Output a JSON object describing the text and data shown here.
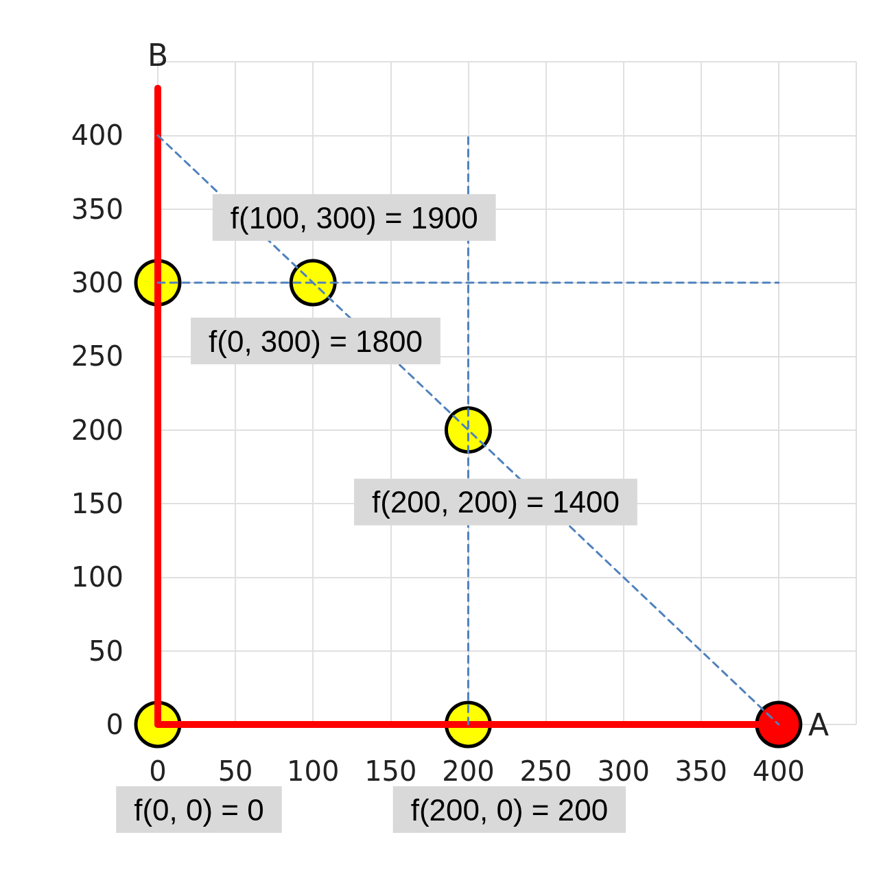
{
  "chart_data": {
    "type": "scatter",
    "xlabel": "A",
    "ylabel": "B",
    "xlim": [
      0,
      450
    ],
    "xticks": [
      0,
      50,
      100,
      150,
      200,
      250,
      300,
      350,
      400,
      {
        "value": 450,
        "label": null
      }
    ],
    "ylim": [
      0,
      450
    ],
    "yticks": [
      0,
      50,
      100,
      150,
      200,
      250,
      300,
      350,
      400,
      {
        "value": 450,
        "label": null
      }
    ],
    "grid": true,
    "series": [
      {
        "type": "line",
        "x": [
          0,
          0
        ],
        "values": [
          0,
          432
        ],
        "color": "#ff0000",
        "line_style": "solid",
        "marker": "none"
      },
      {
        "type": "line",
        "x": [
          0,
          400
        ],
        "values": [
          0,
          0
        ],
        "color": "#ff0000",
        "line_style": "solid",
        "marker": "none"
      },
      {
        "type": "line",
        "x": [
          0,
          400
        ],
        "values": [
          400,
          0
        ],
        "color": "#4f81bd",
        "line_style": "dashed",
        "marker": "none"
      },
      {
        "type": "line",
        "x": [
          200,
          200
        ],
        "values": [
          0,
          400
        ],
        "color": "#4f81bd",
        "line_style": "dashed",
        "marker": "none"
      },
      {
        "type": "line",
        "x": [
          0,
          400
        ],
        "values": [
          300,
          300
        ],
        "color": "#4f81bd",
        "line_style": "dashed",
        "marker": "none"
      },
      {
        "x": [
          0,
          200,
          0,
          100,
          200
        ],
        "values": [
          0,
          0,
          300,
          300,
          200
        ],
        "color": "#ffff00",
        "marker": "circle"
      },
      {
        "x": [
          400
        ],
        "values": [
          0
        ],
        "color": "#ff0000",
        "marker": "circle"
      }
    ],
    "annotations": [
      {
        "text": "f(0, 0) = 0",
        "x": 0,
        "y": 0
      },
      {
        "text": "f(200, 0) = 200",
        "x": 200,
        "y": 0
      },
      {
        "text": "f(0, 300) = 1800",
        "x": 0,
        "y": 300
      },
      {
        "text": "f(100, 300) = 1900",
        "x": 100,
        "y": 300
      },
      {
        "text": "f(200, 200) = 1400",
        "x": 200,
        "y": 200
      }
    ]
  }
}
